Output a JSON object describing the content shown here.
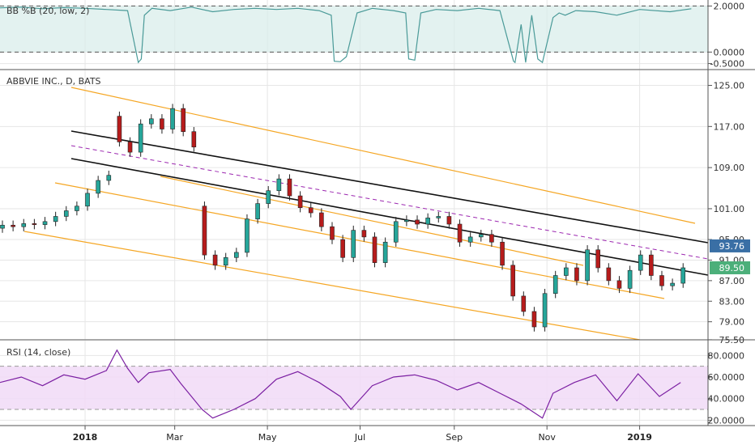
{
  "colors": {
    "up": "#26a69a",
    "down": "#b71c1c",
    "candle_border": "#222222",
    "channel": "#f5a623",
    "trend": "#111111",
    "midline": "#9c27b0",
    "bb_line": "#4a9a98",
    "bb_fill": "#d7ecea",
    "rsi_line": "#7b1fa2",
    "rsi_fill": "#f1dbf7",
    "tag_blue": "#3a6fa5",
    "tag_green": "#4caf7a",
    "grid": "#e6e6e6",
    "pane_border": "#555555"
  },
  "x_axis": {
    "labels": [
      {
        "text": "2018",
        "date": "2018-01-01",
        "bold": true
      },
      {
        "text": "Mar",
        "date": "2018-03-01",
        "bold": false
      },
      {
        "text": "May",
        "date": "2018-05-01",
        "bold": false
      },
      {
        "text": "Jul",
        "date": "2018-07-01",
        "bold": false
      },
      {
        "text": "Sep",
        "date": "2018-09-01",
        "bold": false
      },
      {
        "text": "Nov",
        "date": "2018-11-01",
        "bold": false
      },
      {
        "text": "2019",
        "date": "2019-01-01",
        "bold": true
      }
    ],
    "start": "2017-11-06",
    "end": "2019-02-15"
  },
  "chart_data": [
    {
      "type": "line",
      "pane": "bb",
      "title": "BB %B (20, low, 2)",
      "ylim": [
        -0.55,
        2.05
      ],
      "yticks": [
        "2.0000",
        "0.0000",
        "-0.5000"
      ],
      "ytick_values": [
        2.0,
        0.0,
        -0.5
      ],
      "bands": [
        0,
        2
      ],
      "series": [
        {
          "x": [
            "2017-11-06",
            "2017-11-20",
            "2017-12-04",
            "2017-12-18",
            "2018-01-01",
            "2018-01-15",
            "2018-01-29",
            "2018-02-05",
            "2018-02-07",
            "2018-02-09",
            "2018-02-14",
            "2018-02-26",
            "2018-03-12",
            "2018-03-26",
            "2018-04-09",
            "2018-04-23",
            "2018-05-07",
            "2018-05-21",
            "2018-06-04",
            "2018-06-12",
            "2018-06-14",
            "2018-06-18",
            "2018-06-22",
            "2018-06-29",
            "2018-07-09",
            "2018-07-23",
            "2018-07-31",
            "2018-08-02",
            "2018-08-06",
            "2018-08-10",
            "2018-08-20",
            "2018-09-03",
            "2018-09-17",
            "2018-10-01",
            "2018-10-10",
            "2018-10-11",
            "2018-10-15",
            "2018-10-18",
            "2018-10-22",
            "2018-10-26",
            "2018-10-29",
            "2018-11-05",
            "2018-11-09",
            "2018-11-13",
            "2018-11-20",
            "2018-12-03",
            "2018-12-17",
            "2019-01-01",
            "2019-01-21",
            "2019-02-04"
          ],
          "values": [
            1.92,
            1.95,
            1.88,
            1.93,
            1.9,
            1.85,
            1.8,
            -0.45,
            -0.3,
            1.6,
            1.9,
            1.8,
            1.95,
            1.75,
            1.85,
            1.9,
            1.85,
            1.9,
            1.8,
            1.6,
            -0.4,
            -0.42,
            -0.2,
            1.7,
            1.9,
            1.8,
            1.7,
            -0.3,
            -0.35,
            1.7,
            1.85,
            1.8,
            1.9,
            1.8,
            -0.4,
            -0.45,
            1.2,
            -0.45,
            1.6,
            -0.3,
            -0.45,
            1.5,
            1.7,
            1.6,
            1.8,
            1.75,
            1.6,
            1.85,
            1.75,
            1.88
          ]
        }
      ]
    },
    {
      "type": "candlestick",
      "pane": "price",
      "title": "ABBVIE INC., D, BATS",
      "ylim": [
        75.8,
        126.5
      ],
      "yticks": [
        "125.00",
        "117.00",
        "109.00",
        "101.00",
        "95.00",
        "91.00",
        "87.00",
        "83.00",
        "79.00",
        "75.50"
      ],
      "ytick_values": [
        125,
        117,
        109,
        101,
        95,
        91,
        87,
        83,
        79,
        75.5
      ],
      "tags": [
        {
          "text": "93.76",
          "value": 93.76,
          "color_key": "tag_blue"
        },
        {
          "text": "89.50",
          "value": 89.5,
          "color_key": "tag_green"
        }
      ],
      "x": [
        "2017-11-06",
        "2017-11-13",
        "2017-11-20",
        "2017-11-27",
        "2017-12-04",
        "2017-12-11",
        "2017-12-18",
        "2017-12-25",
        "2018-01-01",
        "2018-01-08",
        "2018-01-15",
        "2018-01-22",
        "2018-01-29",
        "2018-02-05",
        "2018-02-12",
        "2018-02-19",
        "2018-02-26",
        "2018-03-05",
        "2018-03-12",
        "2018-03-19",
        "2018-03-26",
        "2018-04-02",
        "2018-04-09",
        "2018-04-16",
        "2018-04-23",
        "2018-04-30",
        "2018-05-07",
        "2018-05-14",
        "2018-05-21",
        "2018-05-28",
        "2018-06-04",
        "2018-06-11",
        "2018-06-18",
        "2018-06-25",
        "2018-07-02",
        "2018-07-09",
        "2018-07-16",
        "2018-07-23",
        "2018-07-30",
        "2018-08-06",
        "2018-08-13",
        "2018-08-20",
        "2018-08-27",
        "2018-09-03",
        "2018-09-10",
        "2018-09-17",
        "2018-09-24",
        "2018-10-01",
        "2018-10-08",
        "2018-10-15",
        "2018-10-22",
        "2018-10-29",
        "2018-11-05",
        "2018-11-12",
        "2018-11-19",
        "2018-11-26",
        "2018-12-03",
        "2018-12-10",
        "2018-12-17",
        "2018-12-24",
        "2018-12-31",
        "2019-01-07",
        "2019-01-14",
        "2019-01-21",
        "2019-01-28"
      ],
      "open": [
        97.2,
        97.8,
        97.5,
        98.1,
        97.9,
        98.5,
        99.5,
        100.6,
        101.5,
        104.0,
        106.5,
        119.0,
        114.0,
        112.0,
        117.5,
        118.5,
        116.5,
        120.5,
        116.0,
        101.5,
        92.0,
        90.0,
        91.5,
        92.5,
        99.0,
        102.0,
        104.5,
        106.8,
        103.5,
        101.2,
        100.2,
        97.5,
        95.0,
        91.5,
        96.8,
        95.5,
        90.5,
        94.5,
        98.5,
        98.8,
        98.0,
        99.2,
        99.5,
        98.0,
        94.5,
        95.5,
        96.0,
        94.5,
        90.0,
        84.0,
        81.0,
        78.0,
        84.5,
        88.0,
        89.5,
        87.0,
        93.0,
        89.5,
        87.0,
        85.5,
        89.0,
        92.0,
        88.0,
        86.0,
        86.5
      ],
      "close": [
        97.8,
        97.5,
        98.1,
        97.9,
        98.5,
        99.5,
        100.6,
        101.5,
        104.0,
        106.5,
        107.5,
        114.0,
        112.0,
        117.5,
        118.5,
        116.5,
        120.5,
        116.0,
        113.0,
        92.0,
        90.0,
        91.5,
        92.5,
        99.0,
        102.0,
        104.5,
        106.8,
        103.5,
        101.2,
        100.2,
        97.5,
        95.0,
        91.5,
        96.8,
        95.5,
        90.5,
        94.5,
        98.5,
        98.8,
        98.0,
        99.2,
        99.5,
        98.0,
        94.5,
        95.5,
        96.0,
        94.5,
        90.0,
        84.0,
        81.0,
        78.0,
        84.5,
        88.0,
        89.5,
        87.0,
        93.0,
        89.5,
        87.0,
        85.5,
        89.0,
        92.0,
        88.0,
        86.0,
        86.5,
        89.5
      ]
    },
    {
      "type": "line",
      "pane": "rsi",
      "title": "RSI (14, close)",
      "ylim": [
        18,
        90
      ],
      "yticks": [
        "80.0000",
        "60.0000",
        "40.0000",
        "20.0000"
      ],
      "ytick_values": [
        80,
        60,
        40,
        20
      ],
      "bands": [
        30,
        70
      ],
      "series": [
        {
          "x": [
            "2017-11-06",
            "2017-11-20",
            "2017-12-04",
            "2017-12-18",
            "2018-01-01",
            "2018-01-15",
            "2018-01-22",
            "2018-01-29",
            "2018-02-05",
            "2018-02-12",
            "2018-02-26",
            "2018-03-05",
            "2018-03-19",
            "2018-03-26",
            "2018-04-09",
            "2018-04-23",
            "2018-05-07",
            "2018-05-21",
            "2018-06-04",
            "2018-06-18",
            "2018-06-25",
            "2018-07-09",
            "2018-07-23",
            "2018-08-06",
            "2018-08-20",
            "2018-09-03",
            "2018-09-17",
            "2018-10-01",
            "2018-10-15",
            "2018-10-29",
            "2018-11-05",
            "2018-11-19",
            "2018-12-03",
            "2018-12-17",
            "2018-12-31",
            "2019-01-14",
            "2019-01-28"
          ],
          "values": [
            55,
            60,
            52,
            62,
            58,
            66,
            85,
            68,
            55,
            64,
            67,
            54,
            30,
            22,
            30,
            40,
            58,
            65,
            55,
            42,
            30,
            52,
            60,
            62,
            57,
            48,
            55,
            45,
            35,
            22,
            45,
            55,
            62,
            38,
            63,
            42,
            55
          ]
        }
      ]
    }
  ]
}
